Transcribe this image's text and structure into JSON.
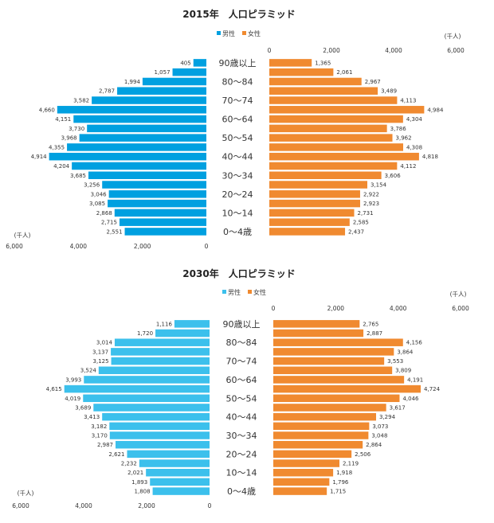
{
  "chart_data": [
    {
      "type": "bar",
      "title": "2015年　人口ピラミッド",
      "legend": [
        {
          "name": "男性",
          "color": "#00a0e0"
        },
        {
          "name": "女性",
          "color": "#f08a30"
        }
      ],
      "unit_left": "(千人)",
      "unit_right": "(千人)",
      "axis_ticks_left": [
        "6,000",
        "4,000",
        "2,000",
        "0"
      ],
      "axis_ticks_right": [
        "0",
        "2,000",
        "4,000",
        "6,000"
      ],
      "xlim": [
        0,
        6000
      ],
      "categories": [
        "90歳以上",
        "",
        "80～84",
        "",
        "70～74",
        "",
        "60～64",
        "",
        "50～54",
        "",
        "40～44",
        "",
        "30～34",
        "",
        "20～24",
        "",
        "10～14",
        "",
        "0～4歳"
      ],
      "series": [
        {
          "name": "男性",
          "values": [
            405,
            1057,
            1994,
            2787,
            3582,
            4660,
            4151,
            3730,
            3968,
            4355,
            4914,
            4204,
            3685,
            3256,
            3046,
            3085,
            2868,
            2715,
            2551
          ],
          "labels": [
            "405",
            "1,057",
            "1,994",
            "2,787",
            "3,582",
            "4,660",
            "4,151",
            "3,730",
            "3,968",
            "4,355",
            "4,914",
            "4,204",
            "3,685",
            "3,256",
            "3,046",
            "3,085",
            "2,868",
            "2,715",
            "2,551"
          ]
        },
        {
          "name": "女性",
          "values": [
            1365,
            2061,
            2967,
            3489,
            4113,
            4984,
            4304,
            3786,
            3962,
            4308,
            4818,
            4112,
            3606,
            3154,
            2922,
            2923,
            2731,
            2585,
            2437
          ],
          "labels": [
            "1,365",
            "2,061",
            "2,967",
            "3,489",
            "4,113",
            "4,984",
            "4,304",
            "3,786",
            "3,962",
            "4,308",
            "4,818",
            "4,112",
            "3,606",
            "3,154",
            "2,922",
            "2,923",
            "2,731",
            "2,585",
            "2,437"
          ]
        }
      ]
    },
    {
      "type": "bar",
      "title": "2030年　人口ピラミッド",
      "legend": [
        {
          "name": "男性",
          "color": "#3cc0ec"
        },
        {
          "name": "女性",
          "color": "#f08a30"
        }
      ],
      "unit_left": "(千人)",
      "unit_right": "(千人)",
      "axis_ticks_left": [
        "6,000",
        "4,000",
        "2,000",
        "0"
      ],
      "axis_ticks_right": [
        "0",
        "2,000",
        "4,000",
        "6,000"
      ],
      "xlim": [
        0,
        6000
      ],
      "categories": [
        "90歳以上",
        "",
        "80～84",
        "",
        "70～74",
        "",
        "60～64",
        "",
        "50～54",
        "",
        "40～44",
        "",
        "30～34",
        "",
        "20～24",
        "",
        "10～14",
        "",
        "0～4歳"
      ],
      "series": [
        {
          "name": "男性",
          "values": [
            1116,
            1720,
            3014,
            3137,
            3125,
            3524,
            3993,
            4615,
            4019,
            3689,
            3413,
            3182,
            3170,
            2987,
            2621,
            2232,
            2021,
            1893,
            1808
          ],
          "labels": [
            "1,116",
            "1,720",
            "3,014",
            "3,137",
            "3,125",
            "3,524",
            "3,993",
            "4,615",
            "4,019",
            "3,689",
            "3,413",
            "3,182",
            "3,170",
            "2,987",
            "2,621",
            "2,232",
            "2,021",
            "1,893",
            "1,808"
          ]
        },
        {
          "name": "女性",
          "values": [
            2765,
            2887,
            4156,
            3864,
            3553,
            3809,
            4191,
            4724,
            4046,
            3617,
            3294,
            3073,
            3048,
            2864,
            2506,
            2119,
            1918,
            1796,
            1715
          ],
          "labels": [
            "2,765",
            "2,887",
            "4,156",
            "3,864",
            "3,553",
            "3,809",
            "4,191",
            "4,724",
            "4,046",
            "3,617",
            "3,294",
            "3,073",
            "3,048",
            "2,864",
            "2,506",
            "2,119",
            "1,918",
            "1,796",
            "1,715"
          ]
        }
      ]
    }
  ]
}
